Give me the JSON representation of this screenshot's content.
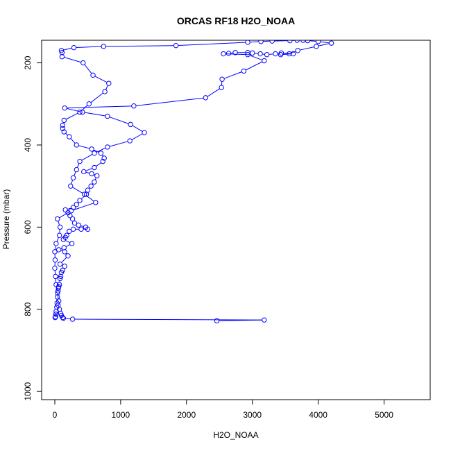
{
  "chart_data": {
    "type": "line",
    "title": "ORCAS RF18 H2O_NOAA",
    "xlabel": "H2O_NOAA",
    "ylabel": "Pressure (mbar)",
    "xlim": [
      -200,
      5700
    ],
    "ylim": [
      1020,
      145
    ],
    "y_reversed": true,
    "grid": false,
    "x_ticks": [
      {
        "value": 0,
        "label": "0"
      },
      {
        "value": 1000,
        "label": "1000"
      },
      {
        "value": 2000,
        "label": "2000"
      },
      {
        "value": 3000,
        "label": "3000"
      },
      {
        "value": 4000,
        "label": "4000"
      },
      {
        "value": 5000,
        "label": "5000"
      }
    ],
    "y_ticks": [
      {
        "value": 200,
        "label": "200"
      },
      {
        "value": 400,
        "label": "400"
      },
      {
        "value": 600,
        "label": "600"
      },
      {
        "value": 800,
        "label": "800"
      },
      {
        "value": 1000,
        "label": "1000"
      }
    ],
    "series_color": "#0000ff",
    "series": [
      {
        "marker": "open-circle",
        "x": [
          5,
          10,
          15,
          20,
          30,
          35,
          40,
          50,
          55,
          60,
          70,
          80,
          90,
          100,
          120,
          150,
          80,
          200,
          150,
          60,
          140,
          260,
          130,
          160,
          180,
          220,
          280,
          400,
          500,
          470,
          360,
          300,
          270,
          230,
          200,
          160,
          280,
          330,
          380,
          480,
          500,
          550,
          600,
          640,
          560,
          440,
          600,
          730,
          750,
          700,
          560,
          330,
          220,
          140,
          120,
          120,
          140,
          380,
          520,
          760,
          820,
          580,
          430,
          110,
          110,
          100,
          290,
          740,
          1840,
          2930,
          3130,
          3300,
          3570,
          3680,
          3770,
          3840,
          4000,
          4200,
          3970,
          3690,
          3560,
          3430,
          3620,
          3440,
          3350,
          3220,
          3120,
          3000,
          2930,
          2740,
          2640,
          2560,
          2930,
          3180,
          2870,
          2540,
          2530,
          2290,
          1200,
          150,
          420,
          800,
          1150,
          1360,
          1140,
          800,
          600,
          380,
          330,
          280,
          240,
          450,
          620,
          250,
          40,
          80,
          70,
          20,
          0,
          5,
          0,
          10,
          20,
          40,
          60,
          50,
          70,
          90,
          100,
          120,
          130,
          270,
          3180,
          2460
        ],
        "y": [
          820,
          818,
          812,
          805,
          795,
          785,
          770,
          755,
          748,
          745,
          740,
          725,
          720,
          710,
          705,
          695,
          690,
          670,
          660,
          655,
          650,
          640,
          630,
          625,
          620,
          610,
          605,
          605,
          605,
          600,
          595,
          590,
          580,
          572,
          565,
          558,
          552,
          545,
          535,
          520,
          510,
          500,
          490,
          475,
          470,
          465,
          455,
          440,
          432,
          420,
          410,
          400,
          380,
          368,
          360,
          352,
          340,
          320,
          300,
          270,
          250,
          230,
          200,
          185,
          175,
          170,
          163,
          160,
          158,
          150,
          148,
          147,
          146,
          145,
          145,
          146,
          148,
          152,
          160,
          170,
          178,
          180,
          178,
          176,
          178,
          180,
          178,
          176,
          175,
          175,
          177,
          178,
          180,
          195,
          220,
          240,
          260,
          285,
          305,
          310,
          320,
          330,
          350,
          370,
          390,
          405,
          420,
          440,
          460,
          480,
          500,
          520,
          540,
          560,
          580,
          600,
          620,
          640,
          660,
          680,
          700,
          720,
          740,
          760,
          780,
          790,
          800,
          810,
          815,
          820,
          822,
          824,
          826,
          828
        ]
      }
    ]
  }
}
